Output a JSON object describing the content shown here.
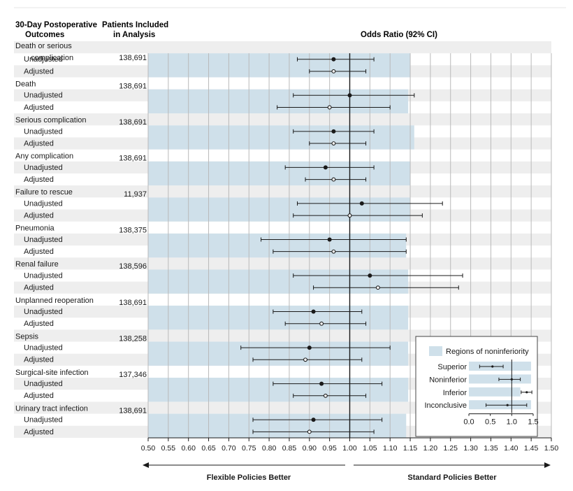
{
  "header": {
    "outcomes_line1": "30-Day Postoperative",
    "outcomes_line2": "Outcomes",
    "patients_line1": "Patients Included",
    "patients_line2": "in Analysis",
    "or_title": "Odds Ratio (92% CI)"
  },
  "footer": {
    "left": "Flexible Policies Better",
    "right": "Standard Policies Better"
  },
  "legend": {
    "title": "Regions of noninferiority",
    "rows": [
      {
        "label": "Superior",
        "point": 0.55,
        "lo": 0.25,
        "hi": 0.8,
        "fill": 1.45
      },
      {
        "label": "Noninferior",
        "point": 1.0,
        "lo": 0.7,
        "hi": 1.2,
        "fill": 1.45
      },
      {
        "label": "Inferior",
        "point": 1.35,
        "lo": 1.22,
        "hi": 1.47,
        "fill": 1.2
      },
      {
        "label": "Inconclusive",
        "point": 0.9,
        "lo": 0.4,
        "hi": 1.35,
        "fill": 1.45
      }
    ],
    "ticks": [
      "0.0",
      "0.5",
      "1.0",
      "1.5"
    ],
    "colors": {
      "region": "#cfe0ea"
    }
  },
  "chart_data": {
    "type": "forest",
    "xlim": [
      0.5,
      1.5
    ],
    "xticks": [
      "0.50",
      "0.55",
      "0.60",
      "0.65",
      "0.70",
      "0.75",
      "0.80",
      "0.85",
      "0.90",
      "0.95",
      "1.00",
      "1.05",
      "1.10",
      "1.15",
      "1.20",
      "1.25",
      "1.30",
      "1.35",
      "1.40",
      "1.45",
      "1.50"
    ],
    "reference_line": 1.0,
    "grid": true,
    "colors": {
      "region": "#cfe0ea",
      "stripe": "#eeeeee",
      "line": "#1a1a1a"
    },
    "outcomes": [
      {
        "name": "Death or serious",
        "name2": "complication",
        "n": "138,691",
        "margin": 1.15,
        "unadjusted": {
          "or": 0.96,
          "lo": 0.87,
          "hi": 1.06
        },
        "adjusted": {
          "or": 0.96,
          "lo": 0.9,
          "hi": 1.04
        }
      },
      {
        "name": "Death",
        "n": "138,691",
        "margin": 1.145,
        "unadjusted": {
          "or": 1.0,
          "lo": 0.86,
          "hi": 1.16
        },
        "adjusted": {
          "or": 0.95,
          "lo": 0.82,
          "hi": 1.1
        }
      },
      {
        "name": "Serious complication",
        "n": "138,691",
        "margin": 1.16,
        "unadjusted": {
          "or": 0.96,
          "lo": 0.86,
          "hi": 1.06
        },
        "adjusted": {
          "or": 0.96,
          "lo": 0.9,
          "hi": 1.04
        }
      },
      {
        "name": "Any complication",
        "n": "138,691",
        "margin": 1.15,
        "unadjusted": {
          "or": 0.94,
          "lo": 0.84,
          "hi": 1.06
        },
        "adjusted": {
          "or": 0.96,
          "lo": 0.89,
          "hi": 1.04
        }
      },
      {
        "name": "Failure to rescue",
        "n": "11,937",
        "margin": 1.15,
        "unadjusted": {
          "or": 1.03,
          "lo": 0.87,
          "hi": 1.23
        },
        "adjusted": {
          "or": 1.0,
          "lo": 0.86,
          "hi": 1.18
        }
      },
      {
        "name": "Pneumonia",
        "n": "138,375",
        "margin": 1.14,
        "unadjusted": {
          "or": 0.95,
          "lo": 0.78,
          "hi": 1.14
        },
        "adjusted": {
          "or": 0.96,
          "lo": 0.81,
          "hi": 1.14
        }
      },
      {
        "name": "Renal failure",
        "n": "138,596",
        "margin": 1.145,
        "unadjusted": {
          "or": 1.05,
          "lo": 0.86,
          "hi": 1.28
        },
        "adjusted": {
          "or": 1.07,
          "lo": 0.91,
          "hi": 1.27
        }
      },
      {
        "name": "Unplanned reoperation",
        "n": "138,691",
        "margin": 1.145,
        "unadjusted": {
          "or": 0.91,
          "lo": 0.81,
          "hi": 1.03
        },
        "adjusted": {
          "or": 0.93,
          "lo": 0.84,
          "hi": 1.04
        }
      },
      {
        "name": "Sepsis",
        "n": "138,258",
        "margin": 1.145,
        "unadjusted": {
          "or": 0.9,
          "lo": 0.73,
          "hi": 1.1
        },
        "adjusted": {
          "or": 0.89,
          "lo": 0.76,
          "hi": 1.03
        }
      },
      {
        "name": "Surgical-site infection",
        "n": "137,346",
        "margin": 1.145,
        "unadjusted": {
          "or": 0.93,
          "lo": 0.81,
          "hi": 1.08
        },
        "adjusted": {
          "or": 0.94,
          "lo": 0.86,
          "hi": 1.04
        }
      },
      {
        "name": "Urinary tract infection",
        "n": "138,691",
        "margin": 1.14,
        "unadjusted": {
          "or": 0.91,
          "lo": 0.76,
          "hi": 1.08
        },
        "adjusted": {
          "or": 0.9,
          "lo": 0.76,
          "hi": 1.06
        }
      }
    ],
    "row_labels": {
      "unadjusted": "Unadjusted",
      "adjusted": "Adjusted"
    }
  }
}
